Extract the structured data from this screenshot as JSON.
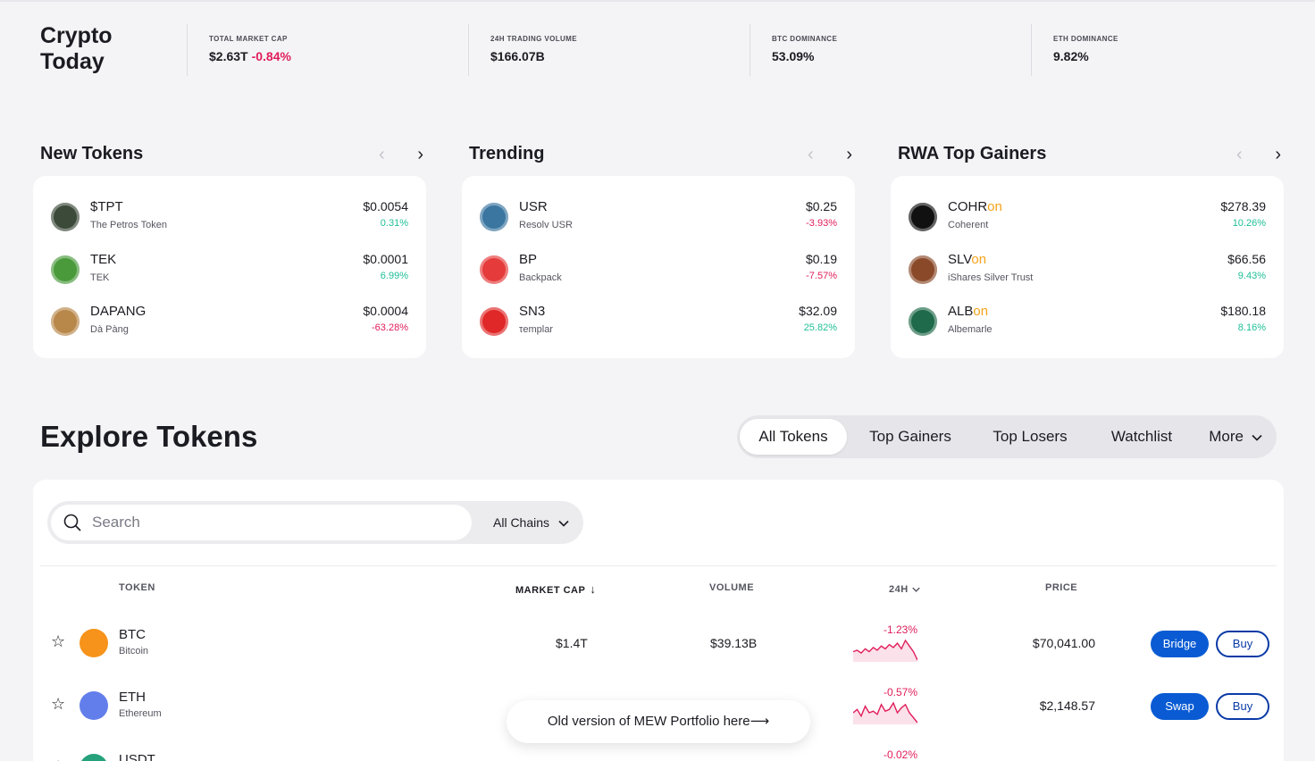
{
  "brand": {
    "line1": "Crypto",
    "line2": "Today"
  },
  "stats": [
    {
      "label": "TOTAL MARKET CAP",
      "value": "$2.63T",
      "change": "-0.84%"
    },
    {
      "label": "24H TRADING VOLUME",
      "value": "$166.07B"
    },
    {
      "label": "BTC DOMINANCE",
      "value": "53.09%"
    },
    {
      "label": "ETH DOMINANCE",
      "value": "9.82%"
    }
  ],
  "nav_icons": {
    "prev": "chevron-left-icon",
    "next": "chevron-right-icon"
  },
  "sections": [
    {
      "title": "New Tokens",
      "items": [
        {
          "symbol": "$TPT",
          "suffix": "",
          "name": "The Petros Token",
          "price": "$0.0054",
          "change": "0.31%",
          "trend": "pos",
          "icon": "petros-token-icon",
          "color": "#3c4a3a"
        },
        {
          "symbol": "TEK",
          "suffix": "",
          "name": "TEK",
          "price": "$0.0001",
          "change": "6.99%",
          "trend": "pos",
          "icon": "tek-token-icon",
          "color": "#4a9a3c"
        },
        {
          "symbol": "DAPANG",
          "suffix": "",
          "name": "Dà Pàng",
          "price": "$0.0004",
          "change": "-63.28%",
          "trend": "neg",
          "icon": "dapang-token-icon",
          "color": "#b8874a"
        }
      ]
    },
    {
      "title": "Trending",
      "items": [
        {
          "symbol": "USR",
          "suffix": "",
          "name": "Resolv USR",
          "price": "$0.25",
          "change": "-3.93%",
          "trend": "neg",
          "icon": "resolv-usr-icon",
          "color": "#3a76a0"
        },
        {
          "symbol": "BP",
          "suffix": "",
          "name": "Backpack",
          "price": "$0.19",
          "change": "-7.57%",
          "trend": "neg",
          "icon": "backpack-icon",
          "color": "#e53b3b"
        },
        {
          "symbol": "SN3",
          "suffix": "",
          "name": "τemplar",
          "price": "$32.09",
          "change": "25.82%",
          "trend": "pos",
          "icon": "templar-icon",
          "color": "#e02828"
        }
      ]
    },
    {
      "title": "RWA Top Gainers",
      "items": [
        {
          "symbol": "COHR",
          "suffix": "on",
          "name": "Coherent",
          "price": "$278.39",
          "change": "10.26%",
          "trend": "pos",
          "icon": "coherent-icon",
          "color": "#111111"
        },
        {
          "symbol": "SLV",
          "suffix": "on",
          "name": "iShares Silver Trust",
          "price": "$66.56",
          "change": "9.43%",
          "trend": "pos",
          "icon": "ishares-icon",
          "color": "#8a4a2a"
        },
        {
          "symbol": "ALB",
          "suffix": "on",
          "name": "Albemarle",
          "price": "$180.18",
          "change": "8.16%",
          "trend": "pos",
          "icon": "albemarle-icon",
          "color": "#1f6a4a"
        }
      ]
    }
  ],
  "explore": {
    "title": "Explore Tokens",
    "tabs": [
      "All Tokens",
      "Top Gainers",
      "Top Losers",
      "Watchlist",
      "More"
    ],
    "active_tab": "All Tokens",
    "search_placeholder": "Search",
    "chains_label": "All Chains",
    "columns": {
      "token": "TOKEN",
      "market_cap": "MARKET CAP",
      "volume": "VOLUME",
      "change": "24H",
      "price": "PRICE"
    },
    "rows": [
      {
        "symbol": "BTC",
        "name": "Bitcoin",
        "market_cap": "$1.4T",
        "volume": "$39.13B",
        "change": "-1.23%",
        "price": "$70,041.00",
        "action": "Bridge",
        "buy": "Buy",
        "icon": "bitcoin-icon",
        "color": "#f7931a",
        "spark": [
          14,
          13,
          15,
          12,
          14,
          11,
          13,
          10,
          12,
          9,
          11,
          8,
          12,
          6,
          10,
          14,
          20
        ]
      },
      {
        "symbol": "ETH",
        "name": "Ethereum",
        "market_cap": "",
        "volume": "",
        "change": "-0.57%",
        "price": "$2,148.57",
        "action": "Swap",
        "buy": "Buy",
        "icon": "ethereum-icon",
        "color": "#627eea",
        "spark": [
          12,
          10,
          14,
          8,
          12,
          11,
          13,
          7,
          11,
          10,
          6,
          12,
          9,
          7,
          12,
          15,
          18
        ]
      },
      {
        "symbol": "USDT",
        "name": "",
        "market_cap": "",
        "volume": "",
        "change": "-0.02%",
        "price": "",
        "action": "",
        "buy": "",
        "icon": "tether-icon",
        "color": "#26a17b",
        "spark": []
      }
    ]
  },
  "toast": {
    "text": "Old version of MEW Portfolio here⟶"
  }
}
